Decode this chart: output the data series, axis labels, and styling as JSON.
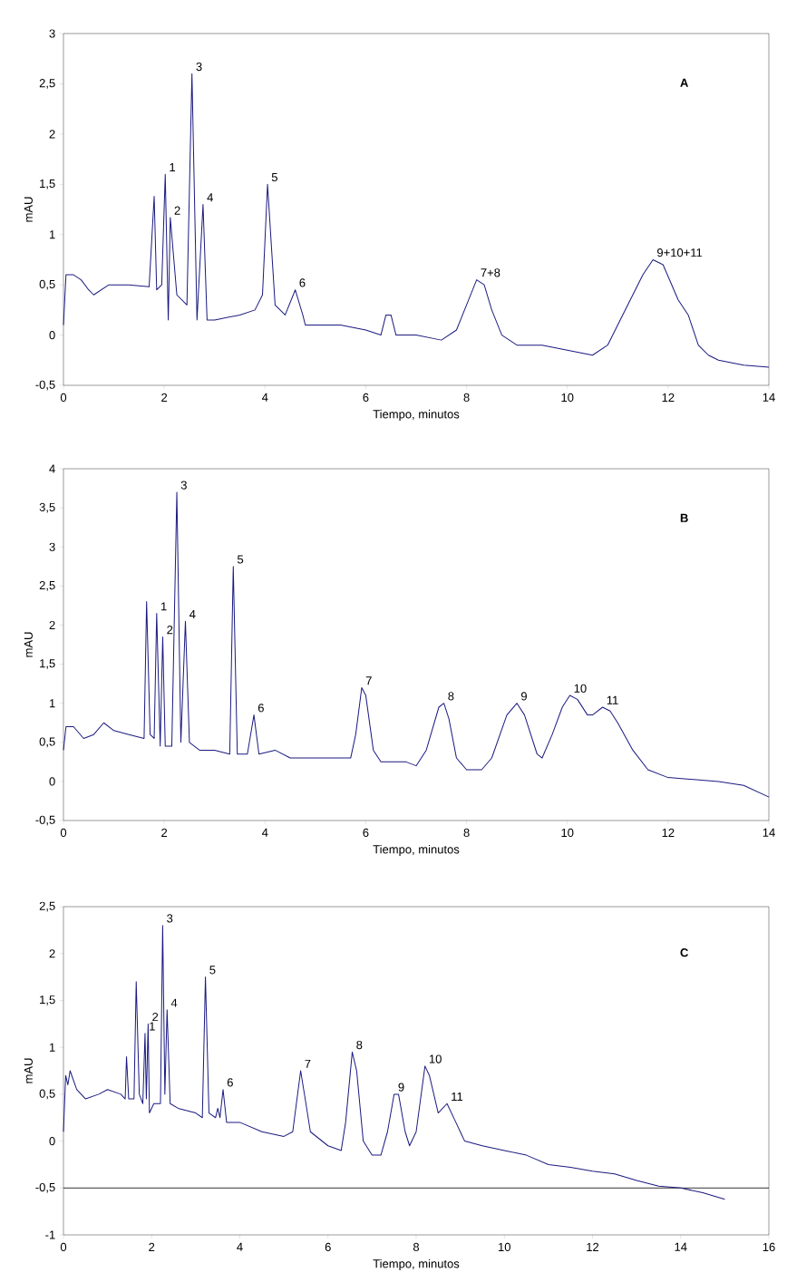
{
  "chart_data": [
    {
      "type": "line",
      "xlabel": "Tiempo, minutos",
      "ylabel": "mAU",
      "xlim": [
        0,
        14
      ],
      "ylim": [
        -0.5,
        3
      ],
      "xticks": [
        0,
        2,
        4,
        6,
        8,
        10,
        12,
        14
      ],
      "yticks": [
        {
          "value": -0.5,
          "label": "-0,5"
        },
        0,
        {
          "value": 0.5,
          "label": "0,5"
        },
        1,
        {
          "value": 1.5,
          "label": "1,5"
        },
        2,
        {
          "value": 2.5,
          "label": "2,5"
        },
        3
      ],
      "series": [
        {
          "color": "#1a1a80",
          "x": [
            0,
            0.05,
            0.2,
            0.35,
            0.5,
            0.6,
            0.9,
            1.3,
            1.7,
            1.8,
            1.85,
            1.95,
            2.02,
            2.08,
            2.12,
            2.25,
            2.45,
            2.55,
            2.65,
            2.77,
            2.85,
            3.0,
            3.5,
            3.8,
            3.95,
            4.05,
            4.2,
            4.4,
            4.6,
            4.75,
            4.8,
            5.5,
            6.0,
            6.3,
            6.4,
            6.5,
            6.6,
            7.0,
            7.5,
            7.8,
            8.0,
            8.2,
            8.35,
            8.5,
            8.7,
            9.0,
            9.5,
            10.0,
            10.5,
            10.8,
            11.2,
            11.5,
            11.7,
            11.9,
            12.2,
            12.4,
            12.6,
            12.8,
            13.0,
            13.5,
            14.0
          ],
          "values": [
            0.1,
            0.6,
            0.6,
            0.55,
            0.45,
            0.4,
            0.5,
            0.5,
            0.48,
            1.38,
            0.45,
            0.5,
            1.6,
            0.15,
            1.17,
            0.4,
            0.3,
            2.6,
            0.15,
            1.3,
            0.15,
            0.15,
            0.2,
            0.25,
            0.4,
            1.5,
            0.3,
            0.2,
            0.45,
            0.2,
            0.1,
            0.1,
            0.05,
            0.0,
            0.2,
            0.2,
            0.0,
            0.0,
            -0.05,
            0.05,
            0.3,
            0.55,
            0.5,
            0.25,
            0.0,
            -0.1,
            -0.1,
            -0.15,
            -0.2,
            -0.1,
            0.3,
            0.6,
            0.75,
            0.7,
            0.35,
            0.2,
            -0.1,
            -0.2,
            -0.25,
            -0.3,
            -0.32
          ]
        }
      ],
      "annotations": [
        "A",
        {
          "text": "1",
          "x": 2.02,
          "y": 1.6
        },
        {
          "text": "2",
          "x": 2.12,
          "y": 1.17
        },
        {
          "text": "3",
          "x": 2.55,
          "y": 2.6
        },
        {
          "text": "4",
          "x": 2.77,
          "y": 1.3
        },
        {
          "text": "5",
          "x": 4.05,
          "y": 1.5
        },
        {
          "text": "6",
          "x": 4.6,
          "y": 0.45
        },
        {
          "text": "7+8",
          "x": 8.2,
          "y": 0.55
        },
        {
          "text": "9+10+11",
          "x": 11.7,
          "y": 0.75
        }
      ]
    },
    {
      "type": "line",
      "xlabel": "Tiempo, minutos",
      "ylabel": "mAU",
      "xlim": [
        0,
        14
      ],
      "ylim": [
        -0.5,
        4
      ],
      "xticks": [
        0,
        2,
        4,
        6,
        8,
        10,
        12,
        14
      ],
      "yticks": [
        {
          "value": -0.5,
          "label": "-0,5"
        },
        0,
        {
          "value": 0.5,
          "label": "0,5"
        },
        1,
        {
          "value": 1.5,
          "label": "1,5"
        },
        2,
        {
          "value": 2.5,
          "label": "2,5"
        },
        3,
        {
          "value": 3.5,
          "label": "3,5"
        },
        4
      ],
      "series": [
        {
          "color": "#1a1a80",
          "x": [
            0,
            0.05,
            0.2,
            0.4,
            0.6,
            0.8,
            1.0,
            1.3,
            1.6,
            1.65,
            1.72,
            1.8,
            1.85,
            1.92,
            1.97,
            2.02,
            2.15,
            2.25,
            2.33,
            2.42,
            2.5,
            2.7,
            3.0,
            3.3,
            3.37,
            3.45,
            3.65,
            3.78,
            3.88,
            4.2,
            4.5,
            5.0,
            5.5,
            5.7,
            5.8,
            5.92,
            6.0,
            6.15,
            6.3,
            6.8,
            7.0,
            7.2,
            7.45,
            7.55,
            7.65,
            7.8,
            8.0,
            8.3,
            8.5,
            8.8,
            9.0,
            9.15,
            9.4,
            9.5,
            9.7,
            9.9,
            10.05,
            10.2,
            10.4,
            10.5,
            10.7,
            10.85,
            11.0,
            11.3,
            11.6,
            12.0,
            13.0,
            13.5,
            14.0
          ],
          "values": [
            0.4,
            0.7,
            0.7,
            0.55,
            0.6,
            0.75,
            0.65,
            0.6,
            0.55,
            2.3,
            0.6,
            0.55,
            2.15,
            0.45,
            1.85,
            0.45,
            0.45,
            3.7,
            0.5,
            2.05,
            0.5,
            0.4,
            0.4,
            0.35,
            2.75,
            0.35,
            0.35,
            0.85,
            0.35,
            0.4,
            0.3,
            0.3,
            0.3,
            0.3,
            0.6,
            1.2,
            1.1,
            0.4,
            0.25,
            0.25,
            0.2,
            0.4,
            0.95,
            1.0,
            0.8,
            0.3,
            0.15,
            0.15,
            0.3,
            0.85,
            1.0,
            0.85,
            0.35,
            0.3,
            0.6,
            0.95,
            1.1,
            1.05,
            0.85,
            0.85,
            0.95,
            0.9,
            0.75,
            0.4,
            0.15,
            0.05,
            0.0,
            -0.05,
            -0.2
          ]
        }
      ],
      "annotations": [
        "B",
        {
          "text": "1",
          "x": 1.85,
          "y": 2.15
        },
        {
          "text": "2",
          "x": 1.97,
          "y": 1.85
        },
        {
          "text": "3",
          "x": 2.25,
          "y": 3.7
        },
        {
          "text": "4",
          "x": 2.42,
          "y": 2.05
        },
        {
          "text": "5",
          "x": 3.37,
          "y": 2.75
        },
        {
          "text": "6",
          "x": 3.78,
          "y": 0.85
        },
        {
          "text": "7",
          "x": 5.92,
          "y": 1.2
        },
        {
          "text": "8",
          "x": 7.55,
          "y": 1.0
        },
        {
          "text": "9",
          "x": 9.0,
          "y": 1.0
        },
        {
          "text": "10",
          "x": 10.05,
          "y": 1.1
        },
        {
          "text": "11",
          "x": 10.7,
          "y": 0.95
        }
      ]
    },
    {
      "type": "line",
      "xlabel": "Tiempo, minutos",
      "ylabel": "mAU",
      "xlim": [
        0,
        16
      ],
      "ylim": [
        -1,
        2.5
      ],
      "xticks": [
        0,
        2,
        4,
        6,
        8,
        10,
        12,
        14,
        16
      ],
      "yticks": [
        -1,
        {
          "value": -0.5,
          "label": "-0,5"
        },
        0,
        {
          "value": 0.5,
          "label": "0,5"
        },
        1,
        {
          "value": 1.5,
          "label": "1,5"
        },
        2,
        {
          "value": 2.5,
          "label": "2,5"
        }
      ],
      "ref_lines": [
        {
          "axis": "y",
          "value": -0.5,
          "color": "#000000"
        }
      ],
      "series": [
        {
          "color": "#1a1a80",
          "x": [
            0,
            0.05,
            0.1,
            0.15,
            0.3,
            0.5,
            0.8,
            1.0,
            1.3,
            1.4,
            1.43,
            1.48,
            1.6,
            1.65,
            1.72,
            1.8,
            1.85,
            1.88,
            1.92,
            1.95,
            2.05,
            2.2,
            2.25,
            2.3,
            2.35,
            2.42,
            2.6,
            3.0,
            3.15,
            3.22,
            3.3,
            3.45,
            3.5,
            3.55,
            3.62,
            3.7,
            4.0,
            4.5,
            5.0,
            5.2,
            5.38,
            5.5,
            5.6,
            6.0,
            6.3,
            6.4,
            6.55,
            6.65,
            6.8,
            7.0,
            7.2,
            7.35,
            7.5,
            7.6,
            7.75,
            7.85,
            8.0,
            8.2,
            8.3,
            8.5,
            8.7,
            8.9,
            9.1,
            9.5,
            10.0,
            10.5,
            11.0,
            11.5,
            12.0,
            12.5,
            13.0,
            13.5,
            14.0,
            14.5,
            15.0
          ],
          "values": [
            0.1,
            0.7,
            0.6,
            0.75,
            0.55,
            0.45,
            0.5,
            0.55,
            0.5,
            0.45,
            0.9,
            0.45,
            0.45,
            1.7,
            0.5,
            0.4,
            1.15,
            0.45,
            1.25,
            0.3,
            0.4,
            0.4,
            2.3,
            0.5,
            1.4,
            0.4,
            0.35,
            0.3,
            0.25,
            1.75,
            0.3,
            0.25,
            0.35,
            0.25,
            0.55,
            0.2,
            0.2,
            0.1,
            0.05,
            0.1,
            0.75,
            0.4,
            0.1,
            -0.05,
            -0.1,
            0.2,
            0.95,
            0.75,
            0.0,
            -0.15,
            -0.15,
            0.1,
            0.5,
            0.5,
            0.1,
            -0.05,
            0.1,
            0.8,
            0.7,
            0.3,
            0.4,
            0.2,
            0.0,
            -0.05,
            -0.1,
            -0.15,
            -0.25,
            -0.28,
            -0.32,
            -0.35,
            -0.42,
            -0.48,
            -0.5,
            -0.55,
            -0.62
          ]
        }
      ],
      "annotations": [
        "C",
        {
          "text": "1",
          "x": 1.85,
          "y": 1.15
        },
        {
          "text": "2",
          "x": 1.92,
          "y": 1.25
        },
        {
          "text": "3",
          "x": 2.25,
          "y": 2.3
        },
        {
          "text": "4",
          "x": 2.35,
          "y": 1.4
        },
        {
          "text": "5",
          "x": 3.22,
          "y": 1.75
        },
        {
          "text": "6",
          "x": 3.62,
          "y": 0.55
        },
        {
          "text": "7",
          "x": 5.38,
          "y": 0.75
        },
        {
          "text": "8",
          "x": 6.55,
          "y": 0.95
        },
        {
          "text": "9",
          "x": 7.5,
          "y": 0.5
        },
        {
          "text": "10",
          "x": 8.2,
          "y": 0.8
        },
        {
          "text": "11",
          "x": 8.7,
          "y": 0.4
        }
      ]
    }
  ]
}
